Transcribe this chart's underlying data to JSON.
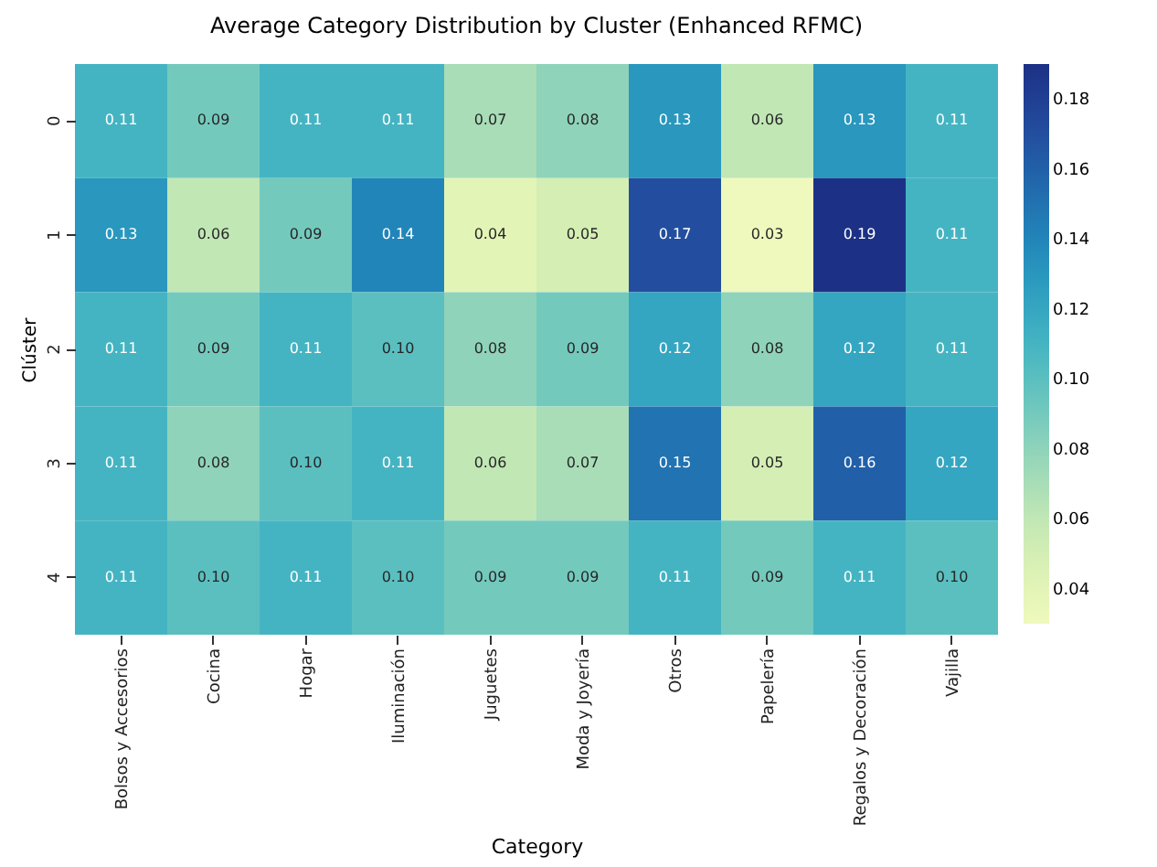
{
  "chart_data": {
    "type": "heatmap",
    "title": "Average Category Distribution by Cluster (Enhanced RFMC)",
    "xlabel": "Category",
    "ylabel": "Clúster",
    "categories": [
      "Bolsos y Accesorios",
      "Cocina",
      "Hogar",
      "Iluminación",
      "Juguetes",
      "Moda y Joyería",
      "Otros",
      "Papelería",
      "Regalos y Decoración",
      "Vajilla"
    ],
    "y_categories": [
      "0",
      "1",
      "2",
      "3",
      "4"
    ],
    "cells": [
      [
        0.11,
        0.09,
        0.11,
        0.11,
        0.07,
        0.08,
        0.13,
        0.06,
        0.13,
        0.11
      ],
      [
        0.13,
        0.06,
        0.09,
        0.14,
        0.04,
        0.05,
        0.17,
        0.03,
        0.19,
        0.11
      ],
      [
        0.11,
        0.09,
        0.11,
        0.1,
        0.08,
        0.09,
        0.12,
        0.08,
        0.12,
        0.11
      ],
      [
        0.11,
        0.08,
        0.1,
        0.11,
        0.06,
        0.07,
        0.15,
        0.05,
        0.16,
        0.12
      ],
      [
        0.11,
        0.1,
        0.11,
        0.1,
        0.09,
        0.09,
        0.11,
        0.09,
        0.11,
        0.1
      ]
    ],
    "cell_labels": [
      [
        "0.11",
        "0.09",
        "0.11",
        "0.11",
        "0.07",
        "0.08",
        "0.13",
        "0.06",
        "0.13",
        "0.11"
      ],
      [
        "0.13",
        "0.06",
        "0.09",
        "0.14",
        "0.04",
        "0.05",
        "0.17",
        "0.03",
        "0.19",
        "0.11"
      ],
      [
        "0.11",
        "0.09",
        "0.11",
        "0.10",
        "0.08",
        "0.09",
        "0.12",
        "0.08",
        "0.12",
        "0.11"
      ],
      [
        "0.11",
        "0.08",
        "0.10",
        "0.11",
        "0.06",
        "0.07",
        "0.15",
        "0.05",
        "0.16",
        "0.12"
      ],
      [
        "0.11",
        "0.10",
        "0.11",
        "0.10",
        "0.09",
        "0.09",
        "0.11",
        "0.09",
        "0.11",
        "0.10"
      ]
    ],
    "data_labels": true,
    "clim": [
      0.03,
      0.19
    ],
    "cticks": [
      0.04,
      0.06,
      0.08,
      {
        "value": 0.1,
        "label": "0.10"
      },
      0.12,
      0.14,
      0.16,
      0.18
    ]
  }
}
